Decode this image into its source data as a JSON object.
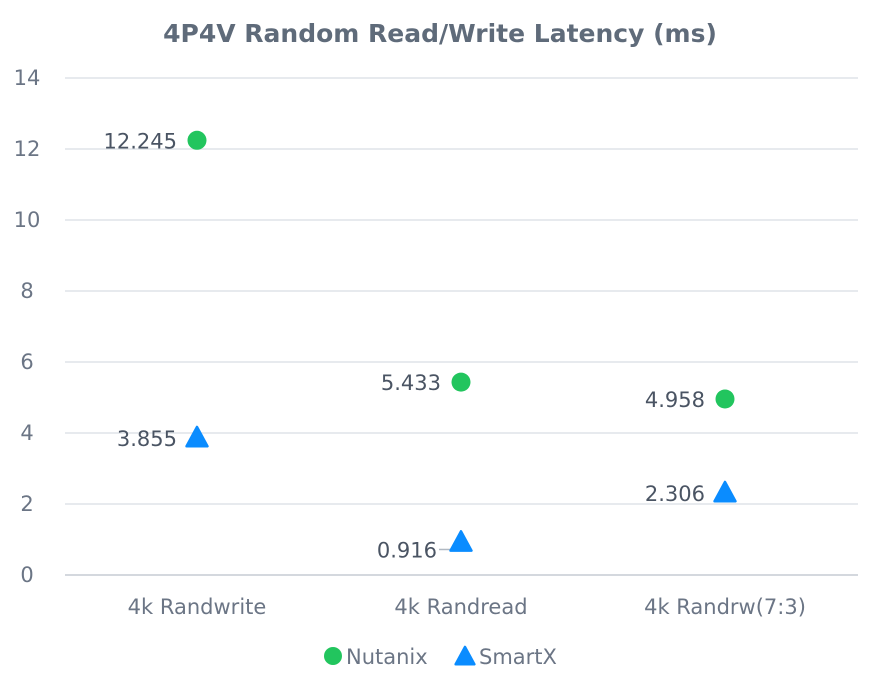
{
  "chart_data": {
    "type": "scatter",
    "title": "4P4V Random Read/Write Latency (ms)",
    "categories": [
      "4k Randwrite",
      "4k Randread",
      "4k Randrw(7:3)"
    ],
    "series": [
      {
        "name": "Nutanix",
        "values": [
          12.245,
          5.433,
          4.958
        ],
        "labels": [
          "12.245",
          "5.433",
          "4.958"
        ],
        "marker": "circle",
        "color": "#22c55e"
      },
      {
        "name": "SmartX",
        "values": [
          3.855,
          0.916,
          2.306
        ],
        "labels": [
          "3.855",
          "0.916",
          "2.306"
        ],
        "marker": "triangle",
        "color": "#0a8cff"
      }
    ],
    "ylim": [
      0,
      14
    ],
    "yticks": [
      "0",
      "2",
      "4",
      "6",
      "8",
      "10",
      "12",
      "14"
    ],
    "grid": true,
    "legend": "bottom"
  }
}
